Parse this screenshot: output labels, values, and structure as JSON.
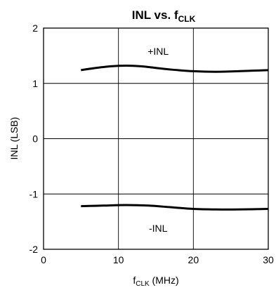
{
  "chart_data": {
    "type": "line",
    "title_main": "INL vs. f",
    "title_sub": "CLK",
    "xlabel_main": "f",
    "xlabel_sub": "CLK",
    "xlabel_unit": " (MHz)",
    "ylabel": "INL (LSB)",
    "xlim": [
      0,
      30
    ],
    "ylim": [
      -2,
      2
    ],
    "x_ticks": [
      0,
      10,
      20,
      30
    ],
    "y_ticks": [
      2,
      1,
      0,
      -1,
      -2
    ],
    "x_tick_labels": [
      "0",
      "10",
      "20",
      "30"
    ],
    "y_tick_labels": [
      "2",
      "1",
      "0",
      "-1",
      "-2"
    ],
    "grid": true,
    "line_color": "#000000",
    "series": [
      {
        "name": "+INL",
        "x": [
          5,
          7,
          9,
          11,
          13,
          15,
          17,
          20,
          23,
          26,
          28,
          30
        ],
        "y": [
          1.24,
          1.28,
          1.31,
          1.32,
          1.31,
          1.28,
          1.25,
          1.22,
          1.21,
          1.22,
          1.23,
          1.24
        ]
      },
      {
        "name": "-INL",
        "x": [
          5,
          8,
          11,
          14,
          17,
          20,
          23,
          26,
          30
        ],
        "y": [
          -1.22,
          -1.21,
          -1.2,
          -1.21,
          -1.24,
          -1.27,
          -1.28,
          -1.28,
          -1.27
        ]
      }
    ],
    "annotations": [
      {
        "text": "+INL",
        "x": 15.3,
        "y": 1.58
      },
      {
        "text": "-INL",
        "x": 15.3,
        "y": -1.62
      }
    ]
  }
}
